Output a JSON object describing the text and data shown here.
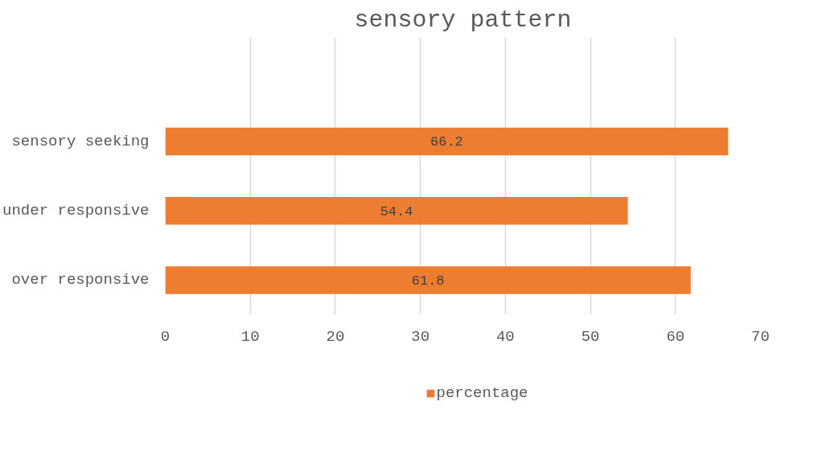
{
  "chart_data": {
    "type": "bar",
    "orientation": "horizontal",
    "title": "sensory pattern",
    "categories": [
      "sensory seeking",
      "under responsive",
      "over responsive"
    ],
    "series": [
      {
        "name": "percentage",
        "color": "#ed7d31",
        "values": [
          66.2,
          54.4,
          61.8
        ]
      }
    ],
    "xlim": [
      0,
      70
    ],
    "xticks": [
      0,
      10,
      20,
      30,
      40,
      50,
      60,
      70
    ],
    "grid": "x",
    "legend": "bottom",
    "data_labels": true
  }
}
